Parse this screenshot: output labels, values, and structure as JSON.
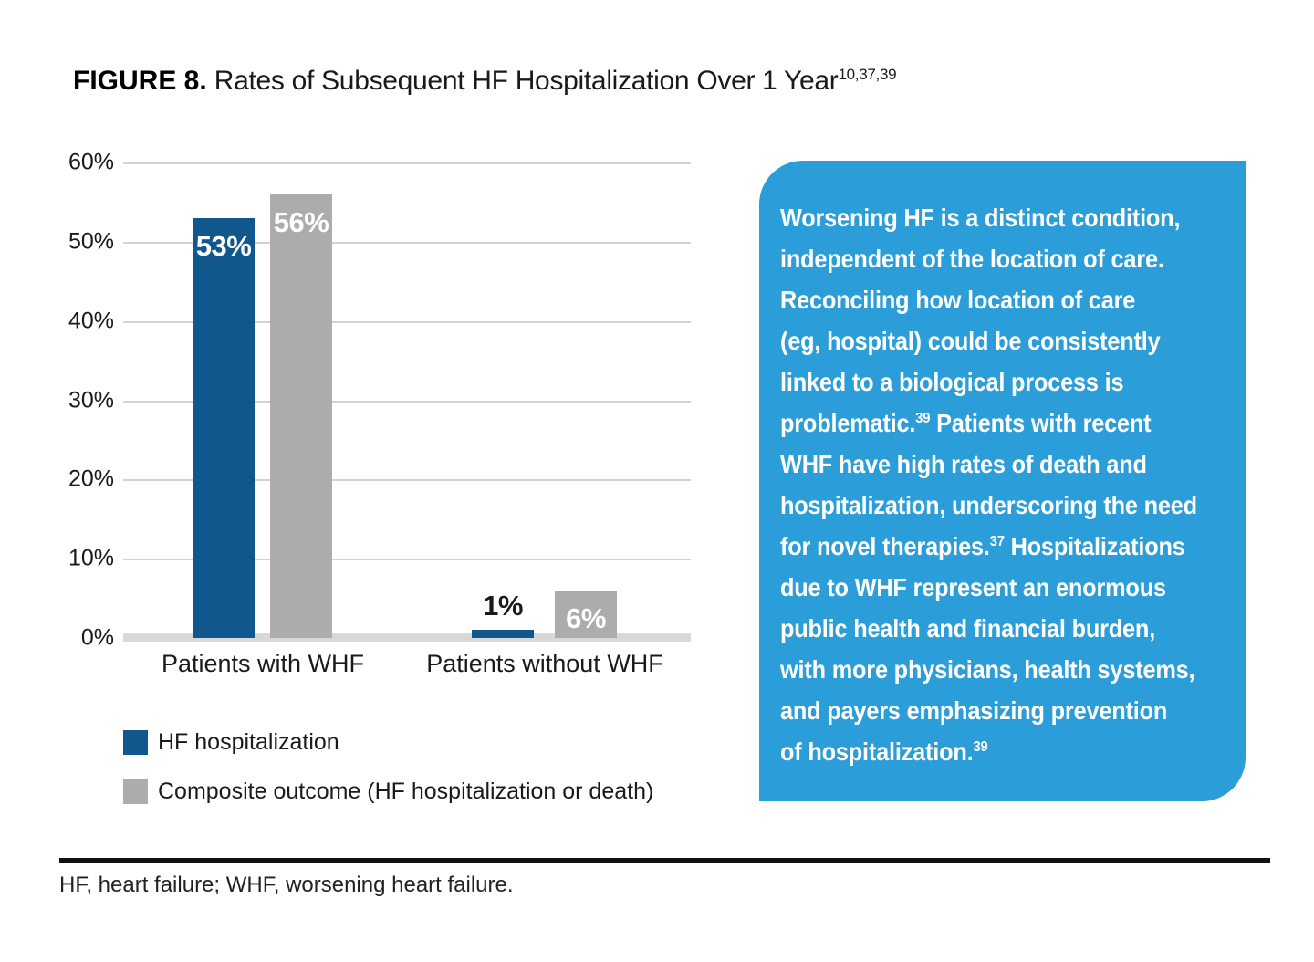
{
  "figure": {
    "label": "FIGURE 8.",
    "title": " Rates of Subsequent HF Hospitalization Over 1 Year",
    "title_sup": "10,37,39"
  },
  "chart_data": {
    "type": "bar",
    "categories": [
      "Patients with WHF",
      "Patients without WHF"
    ],
    "series": [
      {
        "name": "HF hospitalization",
        "color": "#0f578c",
        "points": [
          {
            "value": 53,
            "label": "53%",
            "label_inside": true,
            "label_color": "#ffffff"
          },
          {
            "value": 1,
            "label": "1%",
            "label_inside": false,
            "label_color": "#1a1a1a"
          }
        ]
      },
      {
        "name": "Composite outcome (HF hospitalization or death)",
        "color": "#acacac",
        "points": [
          {
            "value": 56,
            "label": "56%",
            "label_inside": true,
            "label_color": "#ffffff"
          },
          {
            "value": 6,
            "label": "6%",
            "label_inside": true,
            "label_color": "#ffffff"
          }
        ]
      }
    ],
    "y_ticks": [
      "60%",
      "50%",
      "40%",
      "30%",
      "20%",
      "10%",
      "0%"
    ],
    "ylim": [
      0,
      60
    ],
    "grid": true,
    "legend_position": "below-left"
  },
  "callout": {
    "bg_color": "#2b9dd8",
    "lines": [
      [
        {
          "t": "Worsening HF is a distinct condition,"
        }
      ],
      [
        {
          "t": "independent of the location of care."
        }
      ],
      [
        {
          "t": "Reconciling how location of care"
        }
      ],
      [
        {
          "t": "(eg, hospital) could be consistently"
        }
      ],
      [
        {
          "t": "linked to a biological process is"
        }
      ],
      [
        {
          "t": "problematic."
        },
        {
          "sup": "39"
        },
        {
          "t": " Patients with recent"
        }
      ],
      [
        {
          "t": "WHF have high rates of death and"
        }
      ],
      [
        {
          "t": "hospitalization, underscoring the need"
        }
      ],
      [
        {
          "t": "for novel therapies."
        },
        {
          "sup": "37"
        },
        {
          "t": " Hospitalizations"
        }
      ],
      [
        {
          "t": "due to WHF represent an enormous"
        }
      ],
      [
        {
          "t": "public health and financial burden,"
        }
      ],
      [
        {
          "t": "with more physicians, health systems,"
        }
      ],
      [
        {
          "t": "and payers emphasizing prevention"
        }
      ],
      [
        {
          "t": "of hospitalization."
        },
        {
          "sup": "39"
        }
      ]
    ]
  },
  "footnote": {
    "text": "HF, heart failure; WHF, worsening heart failure."
  }
}
